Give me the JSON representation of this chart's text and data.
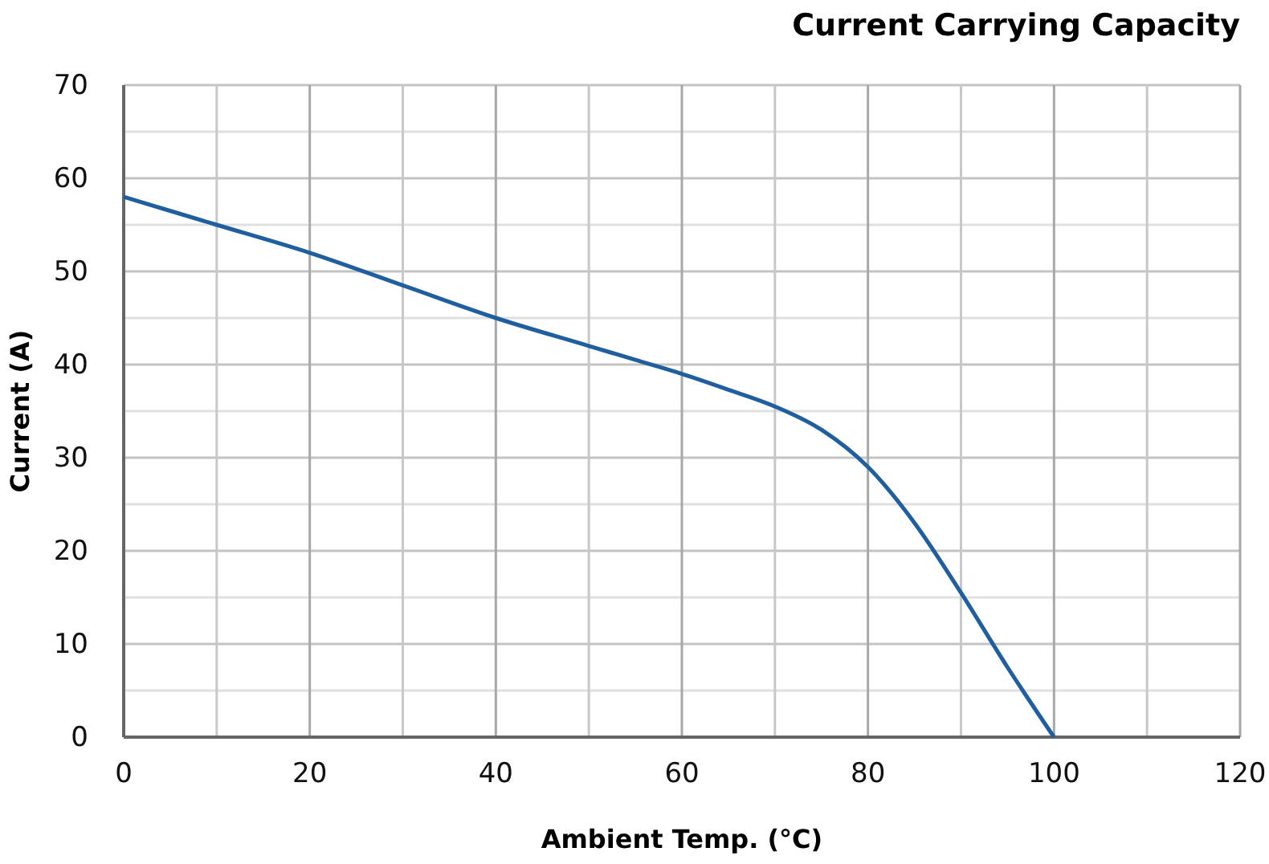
{
  "chart_data": {
    "type": "line",
    "title": "Current Carrying Capacity",
    "xlabel": "Ambient Temp.  (°C)",
    "ylabel": "Current  (A)",
    "x": [
      0,
      10,
      20,
      30,
      40,
      50,
      55,
      60,
      65,
      70,
      75,
      80,
      85,
      90,
      95,
      100
    ],
    "series": [
      {
        "color": "#1f5fa0",
        "values": [
          58,
          55,
          52,
          48.5,
          45,
          42,
          40.5,
          39,
          37.3,
          35.5,
          33,
          29,
          23,
          15.5,
          7.5,
          0
        ]
      }
    ],
    "xlim": [
      0,
      120
    ],
    "xticks": [
      0,
      20,
      40,
      60,
      80,
      100,
      120
    ],
    "ylim": [
      0,
      70
    ],
    "yticks": [
      0,
      10,
      20,
      30,
      40,
      50,
      60,
      70
    ],
    "grid": true,
    "marker": "none",
    "line_style": "solid"
  }
}
